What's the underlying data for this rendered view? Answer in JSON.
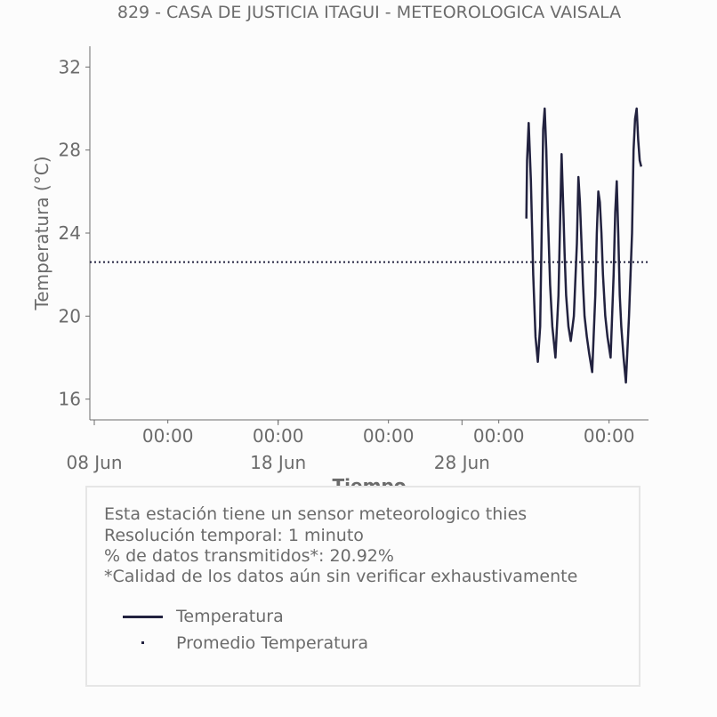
{
  "chart_data": {
    "type": "line",
    "title": "829 - CASA DE JUSTICIA ITAGUI - METEOROLOGICA VAISALA",
    "xlabel": "Tiempo",
    "ylabel": "Temperatura (°C)",
    "ylim": [
      15,
      33
    ],
    "xlim": [
      "2023-06-08",
      "2023-07-08"
    ],
    "y_ticks": [
      "16",
      "20",
      "24",
      "28",
      "32"
    ],
    "x_ticks": [
      {
        "date": "2023-06-12",
        "label": "00:00"
      },
      {
        "date": "2023-06-18",
        "label": "00:00"
      },
      {
        "date": "2023-06-24",
        "label": "00:00"
      },
      {
        "date": "2023-06-30",
        "label": "00:00"
      },
      {
        "date": "2023-07-06",
        "label": "00:00"
      }
    ],
    "x_major_ticks": [
      {
        "date": "2023-06-08",
        "label": "08 Jun"
      },
      {
        "date": "2023-06-18",
        "label": "18 Jun"
      },
      {
        "date": "2023-06-28",
        "label": "28 Jun"
      }
    ],
    "grid": false,
    "legend_position": "bottom",
    "colors": {
      "series": "#22223f",
      "text": "#6b6b6b"
    },
    "series": [
      {
        "name": "Temperatura",
        "style": "solid",
        "x": [
          "2023-07-01 12:00",
          "2023-07-01 13:00",
          "2023-07-01 15:00",
          "2023-07-01 18:00",
          "2023-07-01 21:00",
          "2023-07-02 00:00",
          "2023-07-02 03:00",
          "2023-07-02 06:00",
          "2023-07-02 08:00",
          "2023-07-02 10:00",
          "2023-07-02 12:00",
          "2023-07-02 14:00",
          "2023-07-02 16:00",
          "2023-07-02 19:00",
          "2023-07-02 22:00",
          "2023-07-03 02:00",
          "2023-07-03 06:00",
          "2023-07-03 08:00",
          "2023-07-03 10:00",
          "2023-07-03 12:00",
          "2023-07-03 14:00",
          "2023-07-03 16:00",
          "2023-07-03 19:00",
          "2023-07-03 22:00",
          "2023-07-04 02:00",
          "2023-07-04 06:00",
          "2023-07-04 08:00",
          "2023-07-04 10:00",
          "2023-07-04 12:00",
          "2023-07-04 14:00",
          "2023-07-04 16:00",
          "2023-07-04 19:00",
          "2023-07-04 22:00",
          "2023-07-05 02:00",
          "2023-07-05 06:00",
          "2023-07-05 08:00",
          "2023-07-05 10:00",
          "2023-07-05 12:00",
          "2023-07-05 14:00",
          "2023-07-05 16:00",
          "2023-07-05 19:00",
          "2023-07-05 22:00",
          "2023-07-06 02:00",
          "2023-07-06 06:00",
          "2023-07-06 08:00",
          "2023-07-06 10:00",
          "2023-07-06 12:00",
          "2023-07-06 14:00",
          "2023-07-06 16:00",
          "2023-07-06 19:00",
          "2023-07-06 22:00",
          "2023-07-07 02:00",
          "2023-07-07 06:00",
          "2023-07-07 08:00",
          "2023-07-07 10:00",
          "2023-07-07 12:00",
          "2023-07-07 14:00",
          "2023-07-07 16:00",
          "2023-07-07 18:00"
        ],
        "values": [
          24.7,
          27.5,
          29.3,
          26.5,
          22.0,
          19.0,
          17.8,
          19.5,
          24.0,
          29.0,
          30.0,
          28.0,
          25.0,
          21.5,
          19.5,
          18.0,
          21.0,
          24.5,
          27.8,
          25.5,
          23.0,
          21.0,
          19.5,
          18.8,
          20.0,
          23.5,
          26.7,
          25.5,
          23.5,
          21.5,
          20.0,
          19.0,
          18.2,
          17.3,
          21.0,
          24.0,
          26.0,
          25.5,
          24.0,
          22.0,
          20.0,
          19.0,
          18.0,
          22.0,
          25.0,
          26.5,
          24.0,
          21.0,
          19.5,
          18.0,
          16.8,
          20.0,
          24.0,
          28.0,
          29.5,
          30.0,
          28.5,
          27.5,
          27.2
        ]
      },
      {
        "name": "Promedio Temperatura",
        "style": "dotted",
        "value": 22.6
      }
    ]
  },
  "info_box": {
    "lines": [
      "Esta estación tiene un sensor meteorologico thies",
      "Resolución temporal: 1 minuto",
      "% de datos transmitidos*: 20.92%",
      "*Calidad de los datos aún sin verificar exhaustivamente"
    ]
  }
}
